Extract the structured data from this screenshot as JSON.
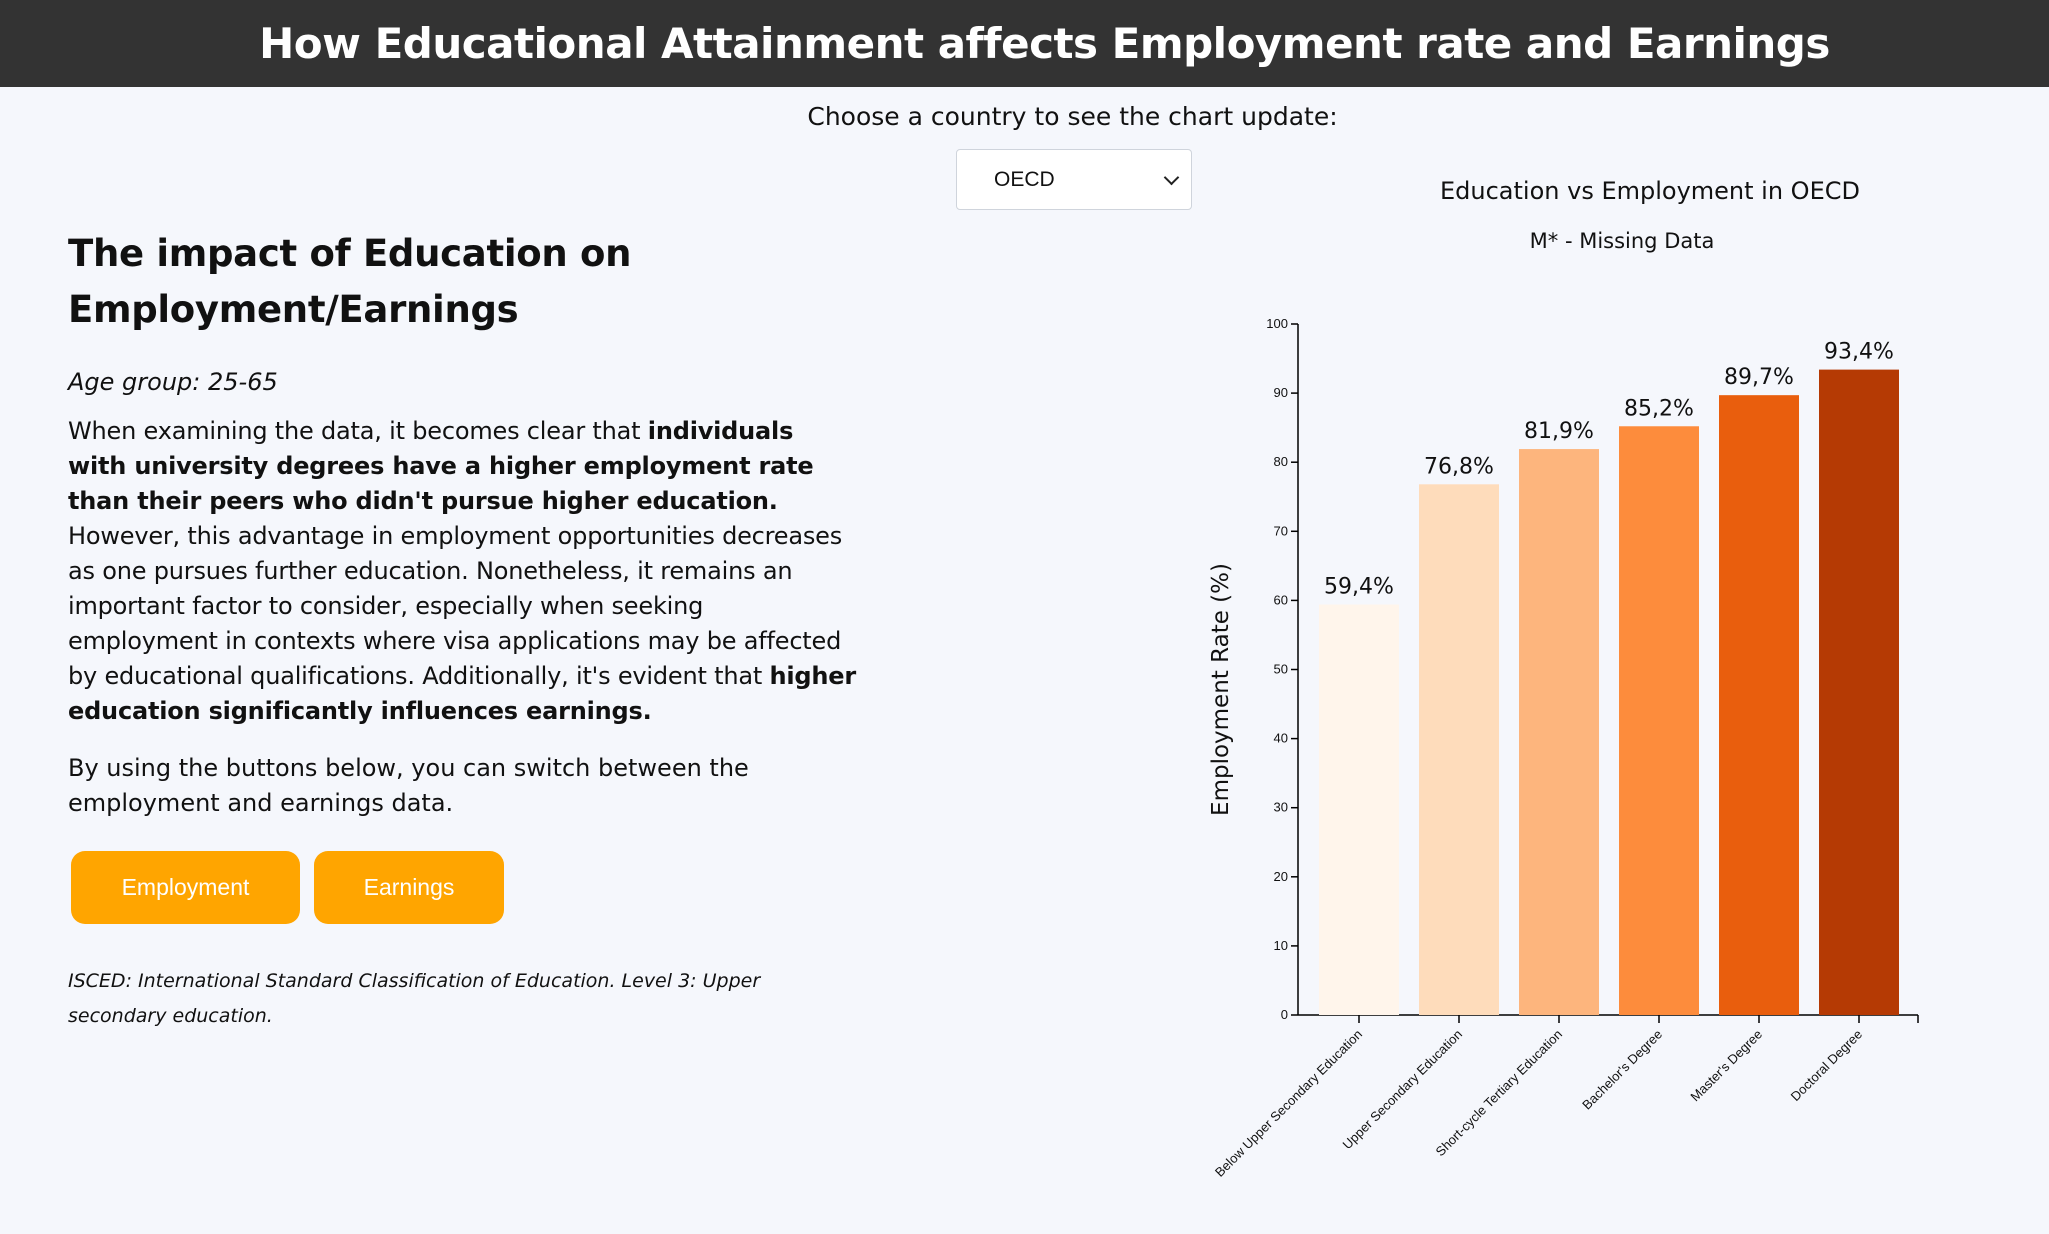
{
  "header": {
    "title": "How Educational Attainment affects Employment rate and Earnings"
  },
  "country_prompt": "Choose a country to see the chart update:",
  "country_select": {
    "selected": "OECD"
  },
  "left": {
    "heading_line1": "The impact of Education on",
    "heading_line2": "Employment/Earnings",
    "age_label": "Age group",
    "age_value": ": 25-65",
    "paragraph": {
      "p1": "When examining the data, it becomes clear that ",
      "b1": "individuals with university degrees have a higher employment rate than their peers who didn't pursue higher education.",
      "p2": " However, this advantage in employment opportunities decreases as one pursues further education. Nonetheless, it remains an important factor to consider, especially when seeking employment in contexts where visa applications may be affected by educational qualifications. Additionally, it's evident that ",
      "b2": "higher education significantly influences earnings."
    },
    "paragraph2": "By using the buttons below, you can switch between the employment and earnings data.",
    "employment_button": "Employment",
    "earnings_button": "Earnings",
    "note": "ISCED: International Standard Classification of Education. Level 3: Upper secondary education."
  },
  "chart_data": {
    "type": "bar",
    "title": "Education vs Employment in OECD",
    "subtitle": "M* - Missing Data",
    "ylabel": "Employment Rate (%)",
    "ylim": [
      0,
      100
    ],
    "yticks": [
      0,
      10,
      20,
      30,
      40,
      50,
      60,
      70,
      80,
      90,
      100
    ],
    "categories": [
      "Below Upper Secondary Education",
      "Upper Secondary Education",
      "Short-cycle Tertiary Education",
      "Bachelor's Degree",
      "Master's Degree",
      "Doctoral Degree"
    ],
    "values": [
      59.4,
      76.8,
      81.9,
      85.2,
      89.7,
      93.4
    ],
    "value_labels": [
      "59,4%",
      "76,8%",
      "81,9%",
      "85,2%",
      "89,7%",
      "93,4%"
    ],
    "colors": [
      "#fff5eb",
      "#fedcbb",
      "#fdb57d",
      "#fd8c3c",
      "#e95e0d",
      "#b53a04"
    ]
  }
}
